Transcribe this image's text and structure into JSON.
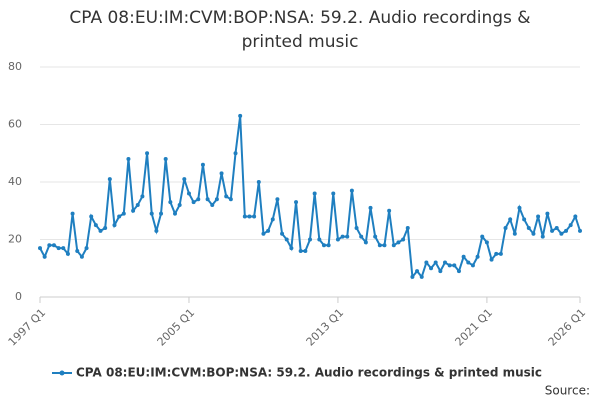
{
  "chart_data": {
    "type": "line",
    "title": "CPA 08:EU:IM:CVM:BOP:NSA: 59.2. Audio recordings & printed music",
    "categories": [
      "1997 Q1",
      null,
      null,
      null,
      null,
      null,
      null,
      null,
      null,
      null,
      null,
      null,
      null,
      null,
      null,
      null,
      null,
      null,
      null,
      null,
      null,
      null,
      null,
      null,
      null,
      null,
      null,
      null,
      null,
      null,
      null,
      null,
      "2005 Q1",
      null,
      null,
      null,
      null,
      null,
      null,
      null,
      null,
      null,
      null,
      null,
      null,
      null,
      null,
      null,
      null,
      null,
      null,
      null,
      null,
      null,
      null,
      null,
      null,
      null,
      null,
      null,
      null,
      null,
      null,
      null,
      "2013 Q1",
      null,
      null,
      null,
      null,
      null,
      null,
      null,
      null,
      null,
      null,
      null,
      null,
      null,
      null,
      null,
      null,
      null,
      null,
      null,
      null,
      null,
      null,
      null,
      null,
      null,
      null,
      null,
      null,
      null,
      null,
      null,
      "2021 Q1",
      null,
      null,
      null,
      null,
      null,
      null,
      null,
      null,
      null,
      null,
      null,
      null,
      null,
      null,
      null,
      null,
      null,
      null,
      null,
      "2026 Q1"
    ],
    "series": [
      {
        "name": "CPA 08:EU:IM:CVM:BOP:NSA: 59.2. Audio recordings & printed music",
        "color": "#1f7fc0",
        "values": [
          17,
          14,
          18,
          18,
          17,
          17,
          15,
          29,
          16,
          14,
          17,
          28,
          25,
          23,
          24,
          41,
          25,
          28,
          29,
          48,
          30,
          32,
          35,
          50,
          29,
          23,
          29,
          48,
          33,
          29,
          32,
          41,
          36,
          33,
          34,
          46,
          34,
          32,
          34,
          43,
          35,
          34,
          50,
          63,
          28,
          28,
          28,
          40,
          22,
          23,
          27,
          34,
          22,
          20,
          17,
          33,
          16,
          16,
          20,
          36,
          20,
          18,
          18,
          36,
          20,
          21,
          21,
          37,
          24,
          21,
          19,
          31,
          21,
          18,
          18,
          30,
          18,
          19,
          20,
          24,
          7,
          9,
          7,
          12,
          10,
          12,
          9,
          12,
          11,
          11,
          9,
          14,
          12,
          11,
          14,
          21,
          19,
          13,
          15,
          15,
          24,
          27,
          22,
          31,
          27,
          24,
          22,
          28,
          21,
          29,
          23,
          24,
          22,
          23,
          25,
          28,
          23
        ]
      }
    ],
    "ylim": [
      0,
      80
    ],
    "yticks": [
      0,
      20,
      40,
      60,
      80
    ],
    "grid": true,
    "source": "Source:"
  }
}
